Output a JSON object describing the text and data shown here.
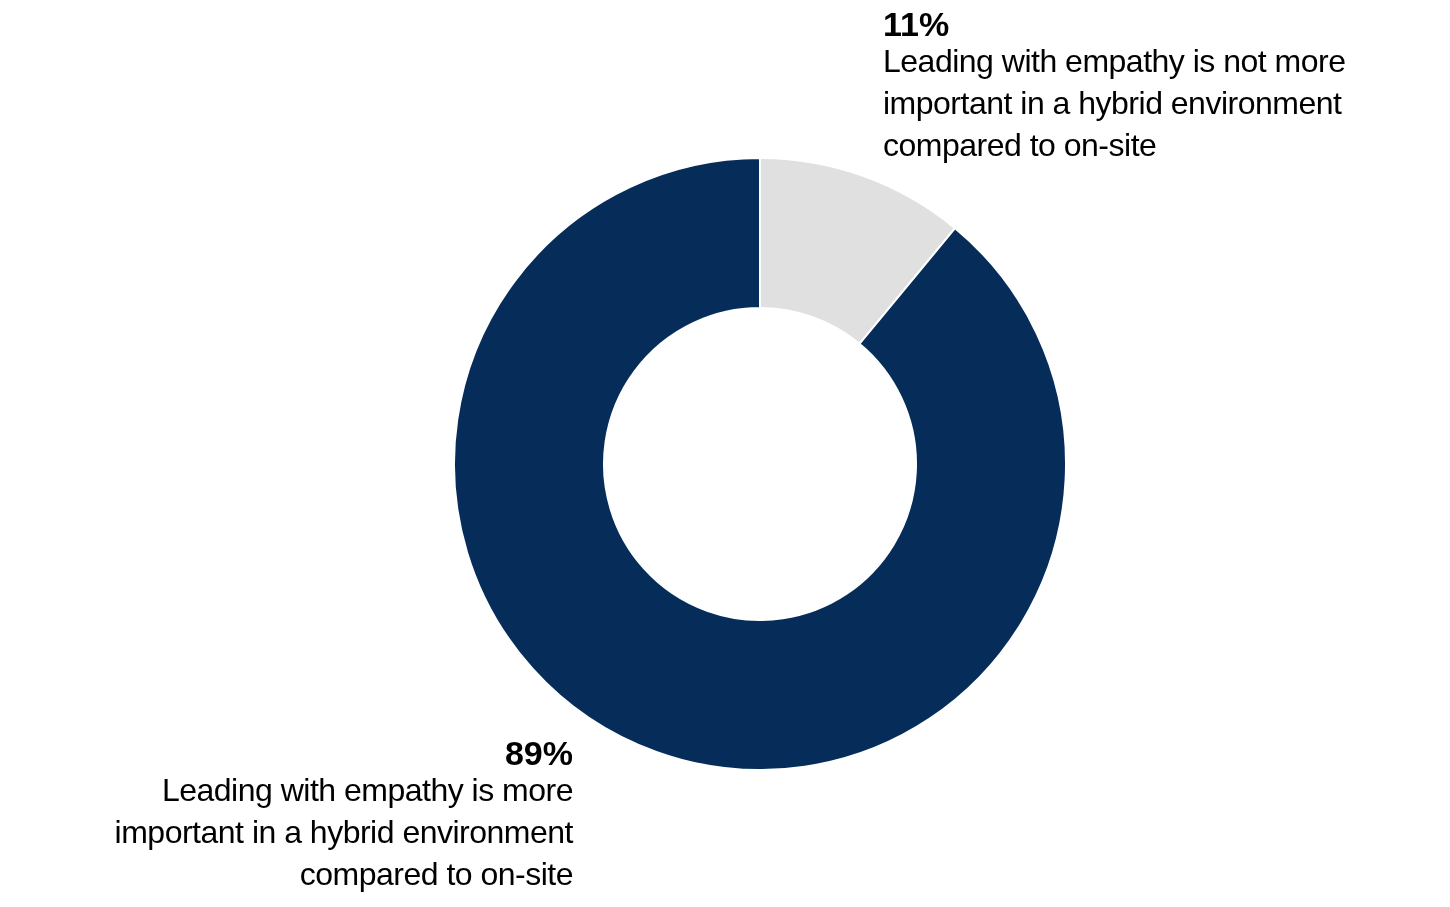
{
  "chart_data": {
    "type": "donut",
    "categories": [
      "Leading with empathy is not more important in a hybrid environment compared to on-site",
      "Leading with empathy is more important in a hybrid environment compared to on-site"
    ],
    "values": [
      11,
      89
    ],
    "colors": [
      "#e0e0e0",
      "#062d5a"
    ],
    "value_labels": [
      "11%",
      "89%"
    ],
    "legend": false
  }
}
